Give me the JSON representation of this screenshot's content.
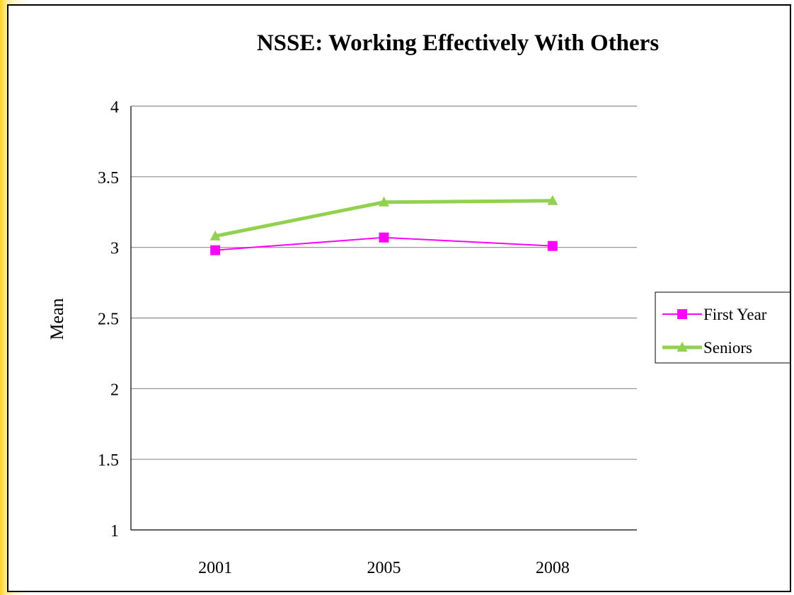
{
  "chart_data": {
    "type": "line",
    "title": "NSSE: Working Effectively With Others",
    "xlabel": "",
    "ylabel": "Mean",
    "categories": [
      "2001",
      "2005",
      "2008"
    ],
    "ylim": [
      1,
      4
    ],
    "yticks": [
      "1",
      "1.5",
      "2",
      "2.5",
      "3",
      "3.5",
      "4"
    ],
    "grid": "horizontal",
    "legend_position": "right",
    "series": [
      {
        "name": "First Year",
        "values": [
          2.98,
          3.07,
          3.01
        ],
        "color": "#ff00ff",
        "marker": "square-icon"
      },
      {
        "name": "Seniors",
        "values": [
          3.08,
          3.32,
          3.33
        ],
        "color": "#92d050",
        "marker": "triangle-icon"
      }
    ]
  }
}
